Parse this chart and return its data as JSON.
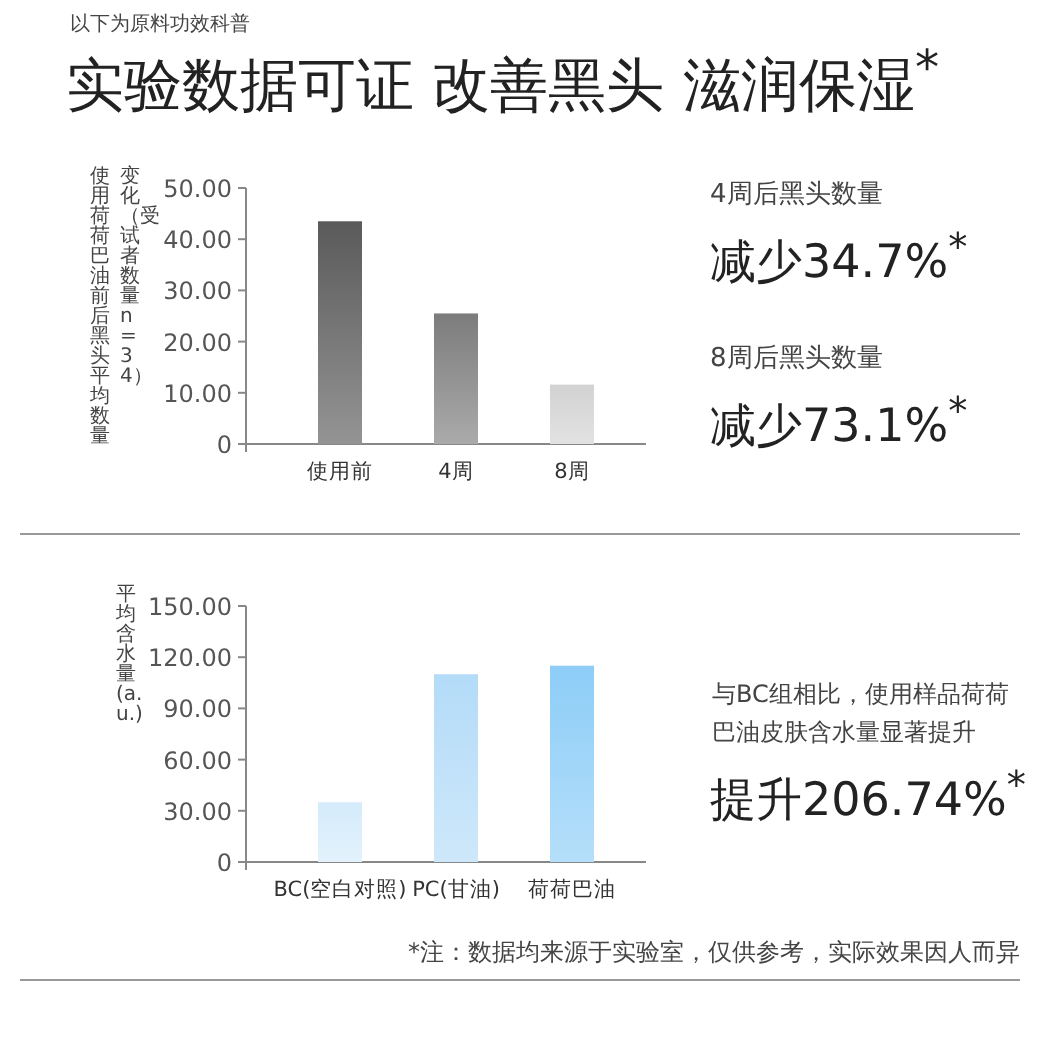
{
  "chart_data": [
    {
      "type": "bar",
      "title": "实验数据可证 改善黑头 滋润保湿$^{*}$",
      "subtitle": "以下为原料功效科普",
      "ylabel": "使用荷荷巴油前后黑头平均数量变化（受试者数量n=34）",
      "categories": [
        "使用前",
        "4周",
        "8周"
      ],
      "values": [
        43.5,
        25.5,
        11.6
      ],
      "colors": [
        "#5a5a5a",
        "#7c7c7c",
        "#d2d2d2"
      ],
      "ylim": [
        0,
        50
      ],
      "yticks": [
        {
          "value": 0,
          "label": "0"
        },
        {
          "value": 10,
          "label": "10.00"
        },
        {
          "value": 20,
          "label": "20.00"
        },
        {
          "value": 30,
          "label": "30.00"
        },
        {
          "value": 40,
          "label": "40.00"
        },
        {
          "value": 50,
          "label": "50.00"
        }
      ],
      "annotations": [
        "4周后黑头数量",
        "减少34.7%$^{*}$",
        "8周后黑头数量",
        "减少73.1%$^{*}$"
      ]
    },
    {
      "type": "bar",
      "ylabel": "平均含水量(a.u.)",
      "categories": [
        "BC(空白对照)",
        "PC(甘油)",
        "荷荷巴油"
      ],
      "values": [
        35,
        110,
        115
      ],
      "colors": [
        "#d4ebfb",
        "#b3dbf8",
        "#8dcdf7"
      ],
      "ylim": [
        0,
        150
      ],
      "yticks": [
        {
          "value": 0,
          "label": "0"
        },
        {
          "value": 30,
          "label": "30.00"
        },
        {
          "value": 60,
          "label": "60.00"
        },
        {
          "value": 90,
          "label": "90.00"
        },
        {
          "value": 120,
          "label": "120.00"
        },
        {
          "value": 150,
          "label": "150.00"
        }
      ],
      "annotations": [
        "与BC组相比，使用样品荷荷巴油皮肤含水量显著提升",
        "提升206.74%$^{*}$",
        "*注：数据均来源于实验室，仅供参考，实际效果因人而异"
      ]
    }
  ]
}
